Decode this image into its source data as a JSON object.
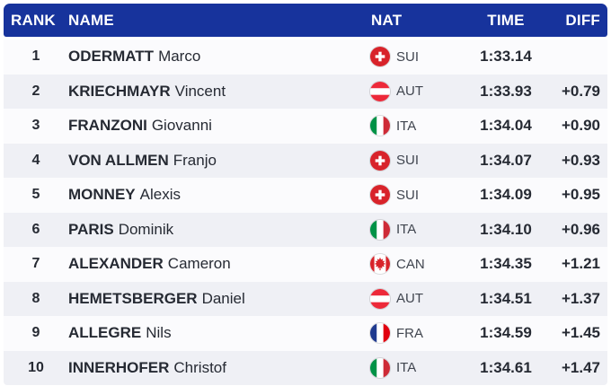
{
  "table": {
    "columns": [
      "RANK",
      "NAME",
      "NAT",
      "TIME",
      "DIFF"
    ],
    "rows": [
      {
        "rank": "1",
        "surname": "ODERMATT",
        "given": "Marco",
        "nat": "SUI",
        "time": "1:33.14",
        "diff": ""
      },
      {
        "rank": "2",
        "surname": "KRIECHMAYR",
        "given": "Vincent",
        "nat": "AUT",
        "time": "1:33.93",
        "diff": "+0.79"
      },
      {
        "rank": "3",
        "surname": "FRANZONI",
        "given": "Giovanni",
        "nat": "ITA",
        "time": "1:34.04",
        "diff": "+0.90"
      },
      {
        "rank": "4",
        "surname": "VON ALLMEN",
        "given": "Franjo",
        "nat": "SUI",
        "time": "1:34.07",
        "diff": "+0.93"
      },
      {
        "rank": "5",
        "surname": "MONNEY",
        "given": "Alexis",
        "nat": "SUI",
        "time": "1:34.09",
        "diff": "+0.95"
      },
      {
        "rank": "6",
        "surname": "PARIS",
        "given": "Dominik",
        "nat": "ITA",
        "time": "1:34.10",
        "diff": "+0.96"
      },
      {
        "rank": "7",
        "surname": "ALEXANDER",
        "given": "Cameron",
        "nat": "CAN",
        "time": "1:34.35",
        "diff": "+1.21"
      },
      {
        "rank": "8",
        "surname": "HEMETSBERGER",
        "given": "Daniel",
        "nat": "AUT",
        "time": "1:34.51",
        "diff": "+1.37"
      },
      {
        "rank": "9",
        "surname": "ALLEGRE",
        "given": "Nils",
        "nat": "FRA",
        "time": "1:34.59",
        "diff": "+1.45"
      },
      {
        "rank": "10",
        "surname": "INNERHOFER",
        "given": "Christof",
        "nat": "ITA",
        "time": "1:34.61",
        "diff": "+1.47"
      }
    ]
  },
  "flags": {
    "SUI": {
      "type": "cross",
      "bg": "#d8232a",
      "fg": "#ffffff"
    },
    "AUT": {
      "type": "hstripes",
      "colors": [
        "#ed2939",
        "#ffffff",
        "#ed2939"
      ]
    },
    "ITA": {
      "type": "vstripes",
      "colors": [
        "#009246",
        "#ffffff",
        "#ce2b37"
      ]
    },
    "FRA": {
      "type": "vstripes",
      "colors": [
        "#1f3a8f",
        "#ffffff",
        "#e1000f"
      ]
    },
    "CAN": {
      "type": "canada",
      "bg": "#ffffff",
      "fg": "#d8232a"
    }
  },
  "theme": {
    "header_bg": "#17339c",
    "header_text": "#ffffff",
    "row_odd_bg": "#fbfbfd",
    "row_even_bg": "#eff0f5",
    "text_color": "#262a33",
    "nat_text": "#40454f",
    "page_bg": "#ffffff"
  }
}
